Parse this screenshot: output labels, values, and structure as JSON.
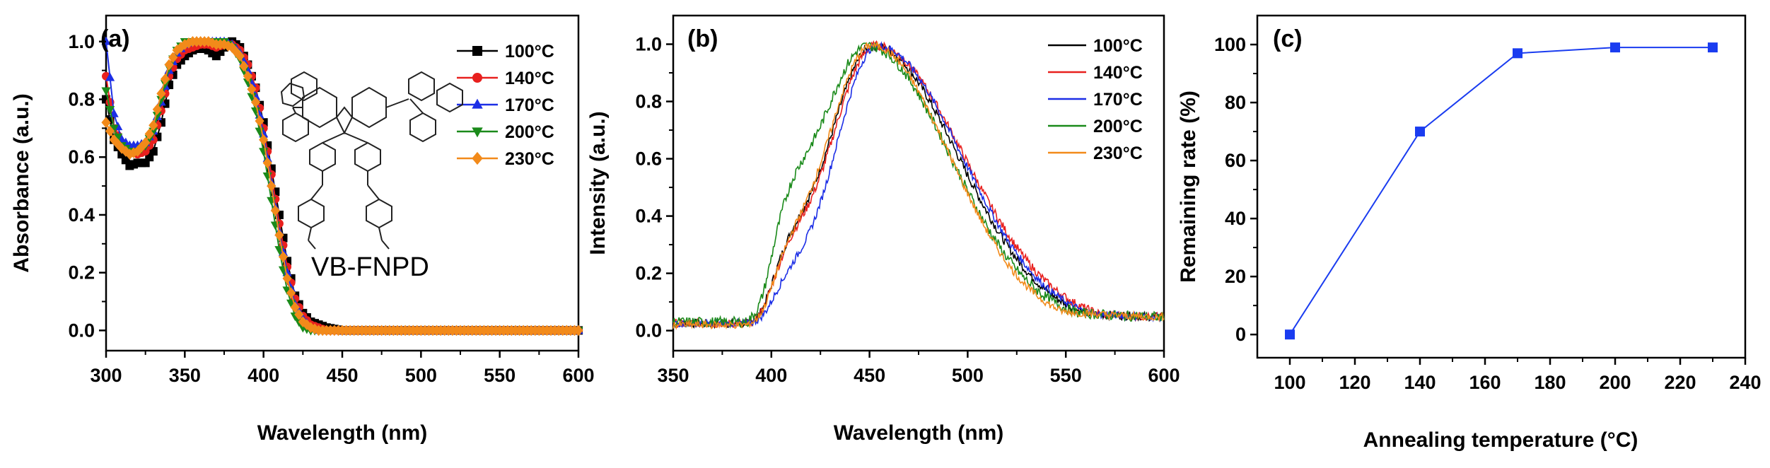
{
  "figure": {
    "panels": [
      "(a)",
      "(b)",
      "(c)"
    ],
    "molecule_label": "VB-FNPD"
  },
  "colors": {
    "100": "#000000",
    "140": "#e8201e",
    "170": "#1c2ee6",
    "200": "#1a8a1a",
    "230": "#f28a1a",
    "c_line": "#1a3cf0"
  },
  "chart_data": [
    {
      "id": "a",
      "type": "line",
      "title": "(a)",
      "xlabel": "Wavelength (nm)",
      "ylabel": "Absorbance (a.u.)",
      "xlim": [
        300,
        600
      ],
      "ylim": [
        -0.07,
        1.09
      ],
      "xticks": [
        300,
        350,
        400,
        450,
        500,
        550,
        600
      ],
      "xtick_labels": [
        "300",
        "350",
        "400",
        "450",
        "500",
        "550",
        "600"
      ],
      "yticks": [
        0.0,
        0.2,
        0.4,
        0.6,
        0.8,
        1.0
      ],
      "ytick_labels": [
        "0.0",
        "0.2",
        "0.4",
        "0.6",
        "0.8",
        "1.0"
      ],
      "legend": [
        "100°C",
        "140°C",
        "170°C",
        "200°C",
        "230°C"
      ],
      "legend_position": "top-right",
      "markers": [
        "square",
        "circle",
        "triangle-up",
        "triangle-down",
        "diamond"
      ],
      "series": [
        {
          "name": "100°C",
          "key": "100",
          "x": [
            300,
            305,
            310,
            315,
            320,
            325,
            330,
            335,
            340,
            345,
            350,
            355,
            360,
            365,
            370,
            375,
            380,
            385,
            390,
            395,
            400,
            405,
            410,
            415,
            420,
            425,
            430,
            435,
            440,
            450,
            460,
            480,
            500,
            520,
            540,
            560,
            580,
            600
          ],
          "y": [
            0.8,
            0.66,
            0.61,
            0.57,
            0.58,
            0.58,
            0.62,
            0.72,
            0.85,
            0.92,
            0.95,
            0.97,
            0.98,
            0.97,
            0.95,
            0.98,
            1.0,
            0.98,
            0.92,
            0.84,
            0.72,
            0.56,
            0.4,
            0.24,
            0.12,
            0.06,
            0.03,
            0.02,
            0.01,
            0.0,
            0.0,
            0.0,
            0.0,
            0.0,
            0.0,
            0.0,
            0.0,
            0.0
          ]
        },
        {
          "name": "140°C",
          "key": "140",
          "x": [
            300,
            305,
            310,
            315,
            320,
            325,
            330,
            335,
            340,
            345,
            350,
            355,
            360,
            365,
            370,
            375,
            380,
            385,
            390,
            395,
            400,
            405,
            410,
            415,
            420,
            425,
            430,
            435,
            440,
            450,
            460,
            480,
            500,
            520,
            540,
            560,
            580,
            600
          ],
          "y": [
            0.88,
            0.7,
            0.65,
            0.62,
            0.61,
            0.62,
            0.66,
            0.76,
            0.88,
            0.94,
            0.97,
            0.98,
            0.99,
            0.99,
            0.98,
            0.99,
            0.99,
            0.97,
            0.92,
            0.84,
            0.7,
            0.54,
            0.37,
            0.22,
            0.11,
            0.05,
            0.02,
            0.01,
            0.0,
            0.0,
            0.0,
            0.0,
            0.0,
            0.0,
            0.0,
            0.0,
            0.0,
            0.0
          ]
        },
        {
          "name": "170°C",
          "key": "170",
          "x": [
            300,
            305,
            310,
            315,
            320,
            325,
            330,
            335,
            340,
            345,
            350,
            355,
            360,
            365,
            370,
            375,
            380,
            385,
            390,
            395,
            400,
            405,
            410,
            415,
            420,
            425,
            430,
            435,
            440,
            450,
            460,
            480,
            500,
            520,
            540,
            560,
            580,
            600
          ],
          "y": [
            1.0,
            0.75,
            0.66,
            0.64,
            0.64,
            0.65,
            0.69,
            0.79,
            0.9,
            0.96,
            0.99,
            1.0,
            1.0,
            1.0,
            1.0,
            1.0,
            0.99,
            0.96,
            0.9,
            0.81,
            0.68,
            0.51,
            0.34,
            0.2,
            0.09,
            0.04,
            0.01,
            0.0,
            0.0,
            0.0,
            0.0,
            0.0,
            0.0,
            0.0,
            0.0,
            0.0,
            0.0,
            0.0
          ]
        },
        {
          "name": "200°C",
          "key": "200",
          "x": [
            300,
            305,
            310,
            315,
            320,
            325,
            330,
            335,
            340,
            345,
            350,
            355,
            360,
            365,
            370,
            375,
            380,
            385,
            390,
            395,
            400,
            405,
            410,
            415,
            420,
            425,
            430,
            435,
            440,
            450,
            460,
            480,
            500,
            520,
            540,
            560,
            580,
            600
          ],
          "y": [
            0.83,
            0.7,
            0.64,
            0.62,
            0.62,
            0.64,
            0.69,
            0.8,
            0.91,
            0.97,
            1.0,
            1.0,
            1.0,
            1.0,
            1.0,
            1.0,
            0.98,
            0.94,
            0.86,
            0.76,
            0.62,
            0.45,
            0.28,
            0.14,
            0.05,
            0.01,
            0.0,
            0.0,
            0.0,
            0.0,
            0.0,
            0.0,
            0.0,
            0.0,
            0.0,
            0.0,
            0.0,
            0.0
          ]
        },
        {
          "name": "230°C",
          "key": "230",
          "x": [
            300,
            305,
            310,
            315,
            320,
            325,
            330,
            335,
            340,
            345,
            350,
            355,
            360,
            365,
            370,
            375,
            380,
            385,
            390,
            395,
            400,
            405,
            410,
            415,
            420,
            425,
            430,
            435,
            440,
            450,
            460,
            480,
            500,
            520,
            540,
            560,
            580,
            600
          ],
          "y": [
            0.72,
            0.66,
            0.63,
            0.61,
            0.62,
            0.65,
            0.71,
            0.82,
            0.92,
            0.97,
            0.99,
            1.0,
            1.0,
            1.0,
            0.99,
            0.99,
            0.98,
            0.95,
            0.88,
            0.79,
            0.66,
            0.5,
            0.33,
            0.18,
            0.08,
            0.03,
            0.01,
            0.0,
            0.0,
            0.0,
            0.0,
            0.0,
            0.0,
            0.0,
            0.0,
            0.0,
            0.0,
            0.0
          ]
        }
      ]
    },
    {
      "id": "b",
      "type": "line",
      "title": "(b)",
      "xlabel": "Wavelength (nm)",
      "ylabel": "Intensity (a.u.)",
      "xlim": [
        350,
        600
      ],
      "ylim": [
        -0.07,
        1.1
      ],
      "xticks": [
        350,
        400,
        450,
        500,
        550,
        600
      ],
      "xtick_labels": [
        "350",
        "400",
        "450",
        "500",
        "550",
        "600"
      ],
      "yticks": [
        0.0,
        0.2,
        0.4,
        0.6,
        0.8,
        1.0
      ],
      "ytick_labels": [
        "0.0",
        "0.2",
        "0.4",
        "0.6",
        "0.8",
        "1.0"
      ],
      "legend": [
        "100°C",
        "140°C",
        "170°C",
        "200°C",
        "230°C"
      ],
      "legend_position": "top-right",
      "series": [
        {
          "name": "100°C",
          "key": "100",
          "peak": 452,
          "noise": 0.015,
          "base": 0.025,
          "width_l": 24,
          "width_r": 43,
          "shoulder": 0.12
        },
        {
          "name": "140°C",
          "key": "140",
          "peak": 453,
          "noise": 0.015,
          "base": 0.025,
          "width_l": 24,
          "width_r": 45,
          "shoulder": 0.12
        },
        {
          "name": "170°C",
          "key": "170",
          "peak": 454,
          "noise": 0.013,
          "base": 0.025,
          "width_l": 22,
          "width_r": 43,
          "shoulder": 0.08
        },
        {
          "name": "200°C",
          "key": "200",
          "peak": 449,
          "noise": 0.018,
          "base": 0.03,
          "width_l": 27,
          "width_r": 42,
          "shoulder": 0.16
        },
        {
          "name": "230°C",
          "key": "230",
          "peak": 451,
          "noise": 0.013,
          "base": 0.02,
          "width_l": 24,
          "width_r": 40,
          "shoulder": 0.1
        }
      ]
    },
    {
      "id": "c",
      "type": "line",
      "title": "(c)",
      "xlabel": "Annealing temperature (°C)",
      "ylabel": "Remaining rate (%)",
      "xlim": [
        90,
        240
      ],
      "ylim": [
        -8,
        110
      ],
      "xticks": [
        100,
        120,
        140,
        160,
        180,
        200,
        220,
        240
      ],
      "xtick_labels": [
        "100",
        "120",
        "140",
        "160",
        "180",
        "200",
        "220",
        "240"
      ],
      "yticks": [
        0,
        20,
        40,
        60,
        80,
        100
      ],
      "ytick_labels": [
        "0",
        "20",
        "40",
        "60",
        "80",
        "100"
      ],
      "series": [
        {
          "name": "Remaining rate",
          "key": "c_line",
          "x": [
            100,
            140,
            170,
            200,
            230
          ],
          "y": [
            0,
            70,
            97,
            99,
            99
          ]
        }
      ]
    }
  ]
}
